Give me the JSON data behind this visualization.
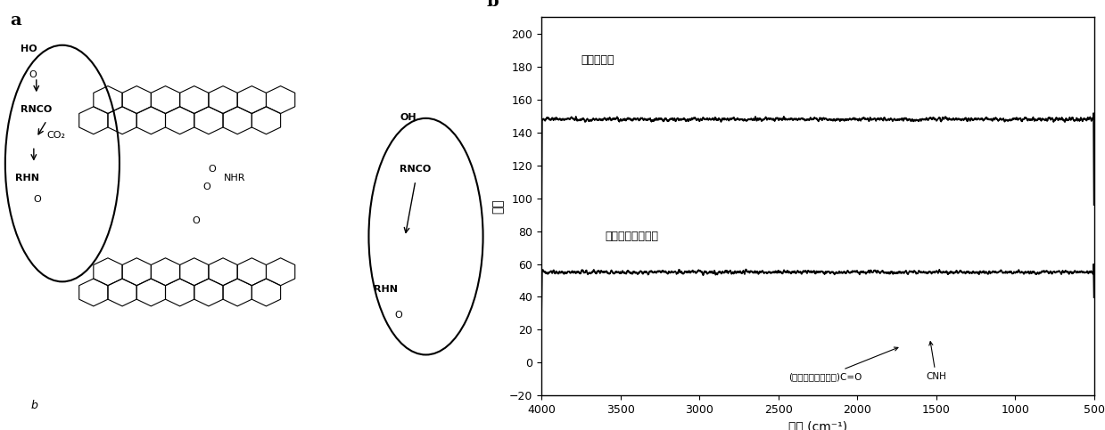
{
  "panel_b_label": "b",
  "panel_a_label": "a",
  "xlabel": "波长 (cm⁻¹)",
  "ylabel": "透过",
  "xlim": [
    4000,
    500
  ],
  "ylim": [
    -20,
    210
  ],
  "yticks": [
    -20,
    0,
    20,
    40,
    60,
    80,
    100,
    120,
    140,
    160,
    180,
    200
  ],
  "xticks": [
    4000,
    3500,
    3000,
    2500,
    2000,
    1500,
    1000,
    500
  ],
  "label1": "氧化石墨烯",
  "label2": "处理后氧化石墨烯",
  "annotation1": "(酰胺和氨基甲酸酯)C=O",
  "annotation2": "CNH",
  "bg_color": "#ffffff",
  "line_color": "#000000"
}
